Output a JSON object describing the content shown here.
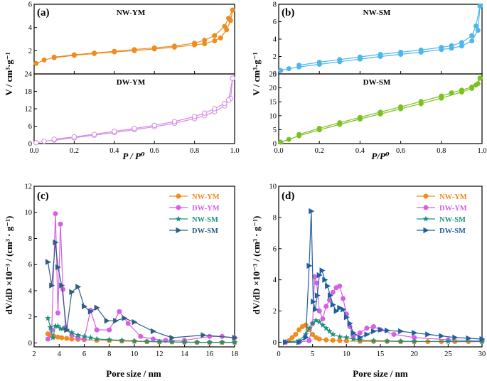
{
  "figure": {
    "x_label_top_left": "P / P⁰",
    "x_label_top_right": "P/P⁰",
    "y_label_top": "V / cm³·g⁻¹",
    "x_label_bottom": "Pore size / nm",
    "y_label_bottom": "dV/dD ×10⁻³ / (cm³ · g⁻¹)"
  },
  "chart_data": [
    {
      "id": "a",
      "type": "line",
      "panel_label": "(a)",
      "title": "NW-YM",
      "xlabel": "P / P⁰",
      "ylabel": "V / cm³·g⁻¹",
      "xlim": [
        0,
        1
      ],
      "ylim": [
        0,
        6
      ],
      "xticks": [
        "0.0",
        "0.2",
        "0.4",
        "0.6",
        "0.8",
        "1.0"
      ],
      "yticks": [
        "2",
        "4",
        "6"
      ],
      "ytick_values": [
        2,
        4,
        6
      ],
      "color": "#f08c1e",
      "marker": "circle",
      "series": [
        {
          "name": "adsorption",
          "x": [
            0.01,
            0.05,
            0.1,
            0.2,
            0.3,
            0.4,
            0.5,
            0.6,
            0.7,
            0.8,
            0.85,
            0.9,
            0.93,
            0.96,
            0.98,
            0.99
          ],
          "y": [
            0.9,
            1.2,
            1.4,
            1.6,
            1.75,
            1.9,
            2.0,
            2.15,
            2.3,
            2.5,
            2.6,
            2.85,
            3.1,
            3.8,
            4.6,
            5.5
          ]
        },
        {
          "name": "desorption",
          "x": [
            0.99,
            0.97,
            0.95,
            0.9,
            0.85,
            0.8,
            0.7,
            0.6,
            0.5,
            0.4,
            0.3,
            0.2,
            0.1
          ],
          "y": [
            5.5,
            4.8,
            4.1,
            3.3,
            2.9,
            2.65,
            2.4,
            2.25,
            2.1,
            1.95,
            1.8,
            1.65,
            1.45
          ]
        }
      ]
    },
    {
      "id": "a2",
      "type": "line",
      "title": "DW-YM",
      "xlim": [
        0,
        1
      ],
      "ylim": [
        0,
        24
      ],
      "yticks": [
        "0",
        "6",
        "12",
        "18",
        "24"
      ],
      "ytick_values": [
        0,
        6,
        12,
        18,
        24
      ],
      "color": "#d68be8",
      "marker": "circle-open",
      "series": [
        {
          "name": "adsorption",
          "x": [
            0.01,
            0.05,
            0.1,
            0.2,
            0.3,
            0.4,
            0.5,
            0.6,
            0.7,
            0.8,
            0.85,
            0.9,
            0.95,
            0.98,
            0.99
          ],
          "y": [
            0.3,
            0.8,
            1.2,
            2.0,
            2.9,
            3.8,
            4.8,
            5.8,
            7.0,
            8.6,
            9.6,
            11.0,
            13.0,
            15.5,
            22.5
          ]
        },
        {
          "name": "desorption",
          "x": [
            0.99,
            0.97,
            0.95,
            0.9,
            0.85,
            0.8,
            0.7,
            0.6,
            0.5,
            0.4,
            0.3,
            0.2,
            0.1
          ],
          "y": [
            22.5,
            15.0,
            13.8,
            12.0,
            10.5,
            9.3,
            7.6,
            6.3,
            5.2,
            4.2,
            3.2,
            2.3,
            1.5
          ]
        }
      ]
    },
    {
      "id": "b",
      "type": "line",
      "panel_label": "(b)",
      "title": "NW-SM",
      "xlabel": "P/P⁰",
      "ylabel": "V / cm³·g⁻¹",
      "xlim": [
        0,
        1
      ],
      "ylim": [
        0,
        8
      ],
      "xticks": [
        "0.0",
        "0.2",
        "0.4",
        "0.6",
        "0.8",
        "1.0"
      ],
      "yticks": [
        "0",
        "2",
        "4",
        "6",
        "8"
      ],
      "ytick_values": [
        0,
        2,
        4,
        6,
        8
      ],
      "color": "#4eb6ec",
      "marker": "circle",
      "series": [
        {
          "name": "adsorption",
          "x": [
            0.01,
            0.05,
            0.1,
            0.2,
            0.3,
            0.4,
            0.5,
            0.6,
            0.7,
            0.8,
            0.85,
            0.9,
            0.95,
            0.98,
            0.99
          ],
          "y": [
            0.4,
            0.6,
            0.8,
            1.1,
            1.4,
            1.7,
            2.0,
            2.25,
            2.5,
            2.8,
            2.95,
            3.2,
            3.8,
            5.0,
            7.8
          ]
        },
        {
          "name": "desorption",
          "x": [
            0.99,
            0.97,
            0.95,
            0.9,
            0.85,
            0.8,
            0.7,
            0.6,
            0.5,
            0.4,
            0.3,
            0.2,
            0.1
          ],
          "y": [
            7.8,
            5.5,
            4.4,
            3.6,
            3.25,
            3.05,
            2.75,
            2.5,
            2.25,
            1.95,
            1.65,
            1.35,
            1.0
          ]
        }
      ]
    },
    {
      "id": "b2",
      "type": "line",
      "title": "DW-SM",
      "xlim": [
        0,
        1
      ],
      "ylim": [
        0,
        25
      ],
      "yticks": [
        "0",
        "5",
        "10",
        "15",
        "20",
        "25"
      ],
      "ytick_values": [
        0,
        5,
        10,
        15,
        20,
        25
      ],
      "color": "#7ac21f",
      "marker": "circle",
      "series": [
        {
          "name": "adsorption",
          "x": [
            0.01,
            0.05,
            0.1,
            0.2,
            0.3,
            0.4,
            0.5,
            0.6,
            0.7,
            0.8,
            0.9,
            0.95,
            0.98,
            0.99
          ],
          "y": [
            0.5,
            1.5,
            2.8,
            4.9,
            6.9,
            8.8,
            10.6,
            12.5,
            14.3,
            16.3,
            18.5,
            19.8,
            21.5,
            23.5
          ]
        },
        {
          "name": "desorption",
          "x": [
            0.99,
            0.97,
            0.95,
            0.9,
            0.85,
            0.8,
            0.7,
            0.6,
            0.5,
            0.4,
            0.3,
            0.2,
            0.1
          ],
          "y": [
            23.5,
            21.0,
            20.3,
            19.2,
            18.2,
            17.1,
            15.1,
            13.2,
            11.3,
            9.4,
            7.5,
            5.5,
            3.3
          ]
        }
      ]
    },
    {
      "id": "c",
      "type": "line",
      "panel_label": "(c)",
      "xlabel": "Pore size / nm",
      "ylabel": "dV/dD ×10⁻³ / (cm³ · g⁻¹)",
      "xlim": [
        2,
        18
      ],
      "ylim": [
        -0.3,
        12
      ],
      "xticks": [
        "2",
        "4",
        "6",
        "8",
        "10",
        "12",
        "14",
        "16",
        "18"
      ],
      "xtick_values": [
        2,
        4,
        6,
        8,
        10,
        12,
        14,
        16,
        18
      ],
      "yticks": [
        "0",
        "2",
        "4",
        "6",
        "8",
        "10",
        "12"
      ],
      "ytick_values": [
        0,
        2,
        4,
        6,
        8,
        10,
        12
      ],
      "legend": [
        "NW-YM",
        "DW-YM",
        "NW-SM",
        "DW-SM"
      ],
      "series": [
        {
          "name": "NW-YM",
          "color": "#f08c1e",
          "marker": "circle",
          "x": [
            3.1,
            3.3,
            3.6,
            3.9,
            4.2,
            4.6,
            5.0,
            5.5,
            6.0,
            7.0,
            8.0,
            9.0,
            10.0,
            11.0,
            12.0,
            13.0,
            14.0,
            15.0,
            16.0,
            17.0,
            18.0
          ],
          "y": [
            0.7,
            0.6,
            0.5,
            0.45,
            0.4,
            0.35,
            0.3,
            0.28,
            0.25,
            0.2,
            0.18,
            0.15,
            0.12,
            0.1,
            0.08,
            0.08,
            0.06,
            0.05,
            0.05,
            0.05,
            0.05
          ]
        },
        {
          "name": "DW-YM",
          "color": "#d65ee8",
          "marker": "circle",
          "x": [
            3.1,
            3.4,
            3.7,
            3.9,
            4.1,
            4.3,
            4.5,
            5.0,
            5.5,
            6.0,
            6.5,
            7.0,
            8.0,
            8.8,
            9.5,
            10.5,
            11.5,
            12.5,
            14.0,
            16.0,
            17.0,
            18.0
          ],
          "y": [
            0.3,
            1.0,
            9.9,
            2.3,
            9.1,
            4.1,
            1.2,
            0.6,
            0.4,
            0.3,
            2.5,
            1.0,
            1.0,
            2.4,
            1.5,
            0.5,
            0.3,
            0.2,
            0.2,
            0.5,
            0.5,
            0.4
          ]
        },
        {
          "name": "NW-SM",
          "color": "#1f8f7e",
          "marker": "star",
          "x": [
            3.1,
            3.3,
            3.5,
            3.7,
            3.9,
            4.1,
            4.3,
            4.6,
            5.0,
            5.5,
            6.0,
            6.5,
            7.0,
            8.0,
            9.0,
            10.0,
            11.0,
            12.0,
            13.0,
            14.0,
            15.0,
            16.0,
            17.0,
            18.0
          ],
          "y": [
            1.9,
            1.2,
            0.4,
            1.3,
            1.3,
            1.1,
            1.1,
            1.0,
            0.8,
            0.6,
            0.5,
            0.4,
            0.3,
            0.25,
            0.2,
            0.15,
            0.12,
            0.1,
            0.08,
            0.06,
            0.05,
            0.05,
            0.05,
            0.05
          ]
        },
        {
          "name": "DW-SM",
          "color": "#2f5e80",
          "marker": "triangle-right",
          "x": [
            3.1,
            3.4,
            3.7,
            3.9,
            4.2,
            4.6,
            5.0,
            5.5,
            6.0,
            6.5,
            7.0,
            7.8,
            8.5,
            9.2,
            10.0,
            11.5,
            13.0,
            15.5,
            18.0
          ],
          "y": [
            6.2,
            4.4,
            7.7,
            5.8,
            4.4,
            1.0,
            3.9,
            4.3,
            2.8,
            2.4,
            2.7,
            1.7,
            1.7,
            1.9,
            1.6,
            0.9,
            0.4,
            0.6,
            0.4
          ]
        }
      ]
    },
    {
      "id": "d",
      "type": "line",
      "panel_label": "(d)",
      "xlabel": "Pore size / nm",
      "ylabel": "dV/dD ×10⁻³ / (cm³ · g⁻¹)",
      "xlim": [
        0,
        30
      ],
      "ylim": [
        -0.3,
        10
      ],
      "xticks": [
        "0",
        "5",
        "10",
        "15",
        "20",
        "25",
        "30"
      ],
      "xtick_values": [
        0,
        5,
        10,
        15,
        20,
        25,
        30
      ],
      "yticks": [
        "0",
        "2",
        "4",
        "6",
        "8",
        "10"
      ],
      "ytick_values": [
        0,
        2,
        4,
        6,
        8,
        10
      ],
      "legend": [
        "NW-YM",
        "DW-YM",
        "NW-SM",
        "DW-SM"
      ],
      "series": [
        {
          "name": "NW-YM",
          "color": "#f08c1e",
          "marker": "circle",
          "x": [
            1.0,
            1.5,
            2.0,
            2.5,
            3.0,
            3.5,
            4.0,
            4.5,
            5.0,
            5.5,
            6.0,
            7.0,
            8.0,
            9.0,
            10.0,
            12.0,
            14.0,
            16.0,
            18.0,
            20.0,
            22.0,
            24.0,
            26.0,
            28.0,
            30.0
          ],
          "y": [
            0,
            0.1,
            0.3,
            0.5,
            0.8,
            1.0,
            1.1,
            0.8,
            0.5,
            0.3,
            0.2,
            0.15,
            0.12,
            0.1,
            0.08,
            0.06,
            0.05,
            0.05,
            0.04,
            0.04,
            0.04,
            0.04,
            0.04,
            0.04,
            0.04
          ]
        },
        {
          "name": "DW-YM",
          "color": "#d65ee8",
          "marker": "circle",
          "x": [
            1.0,
            3.0,
            4.5,
            5.0,
            5.3,
            5.6,
            6.0,
            6.5,
            7.0,
            7.5,
            8.0,
            8.5,
            9.0,
            9.5,
            10.0,
            10.5,
            11.0,
            12.0,
            13.0,
            14.0,
            15.0,
            17.0,
            20.0,
            25.0,
            30.0
          ],
          "y": [
            0,
            0,
            0.1,
            1.2,
            4.2,
            3.8,
            2.0,
            1.5,
            2.3,
            2.7,
            3.2,
            3.5,
            3.6,
            2.8,
            1.8,
            1.0,
            0.4,
            0.6,
            0.9,
            1.0,
            0.8,
            0.5,
            0.3,
            0.15,
            0.1
          ]
        },
        {
          "name": "NW-SM",
          "color": "#1f8f7e",
          "marker": "star",
          "x": [
            1.0,
            3.0,
            4.0,
            4.5,
            5.0,
            5.5,
            6.0,
            6.5,
            7.0,
            7.5,
            8.0,
            9.0,
            10.0,
            11.0,
            12.0,
            14.0,
            16.0,
            18.0,
            20.0,
            25.0,
            30.0
          ],
          "y": [
            0,
            0.1,
            0.5,
            0.9,
            1.2,
            1.4,
            1.3,
            1.1,
            0.9,
            0.7,
            0.5,
            0.35,
            0.3,
            0.2,
            0.15,
            0.1,
            0.08,
            0.06,
            0.05,
            0.04,
            0.04
          ]
        },
        {
          "name": "DW-SM",
          "color": "#1f5f9f",
          "marker": "triangle-right",
          "x": [
            1.0,
            3.0,
            4.0,
            4.5,
            4.8,
            5.1,
            5.4,
            5.7,
            6.0,
            6.4,
            6.8,
            7.2,
            7.6,
            8.0,
            8.5,
            9.0,
            9.5,
            10.0,
            10.5,
            11.0,
            12.0,
            13.0,
            14.0,
            15.0,
            16.0,
            18.0,
            20.0,
            22.0,
            24.0,
            26.0,
            28.0,
            30.0
          ],
          "y": [
            0,
            0,
            0.3,
            4.9,
            8.4,
            2.6,
            2.1,
            3.0,
            4.3,
            4.6,
            4.0,
            3.6,
            3.0,
            2.4,
            2.0,
            2.2,
            2.1,
            1.6,
            1.2,
            0.6,
            0.3,
            0.5,
            0.7,
            0.8,
            0.75,
            0.7,
            0.6,
            0.5,
            0.4,
            0.3,
            0.25,
            0.2
          ]
        }
      ]
    }
  ]
}
